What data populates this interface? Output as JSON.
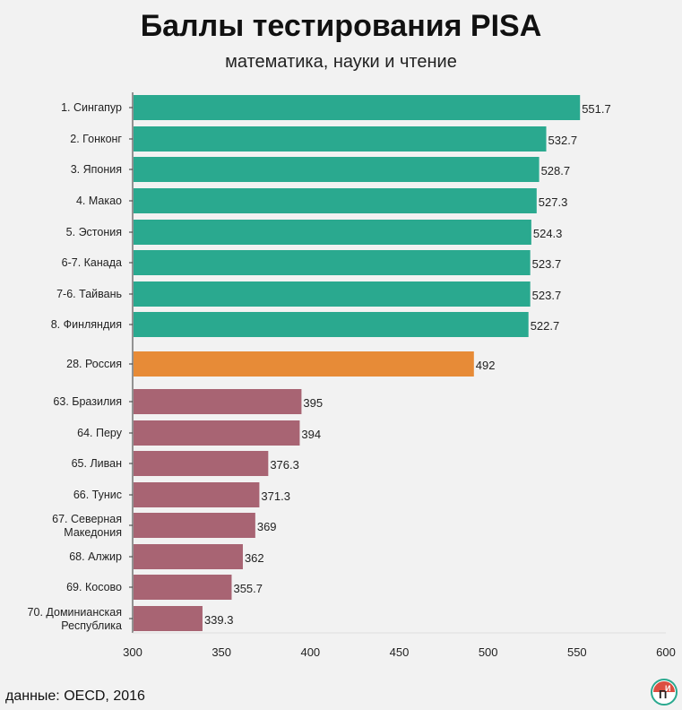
{
  "title": "Баллы тестирования PISA",
  "subtitle": "математика, науки и чтение",
  "source": "данные: OECD, 2016",
  "logo": {
    "text_p": "П",
    "text_i": "И",
    "colors": {
      "red": "#d83b2b",
      "green": "#2aa98f",
      "dark": "#222222"
    }
  },
  "chart_data": {
    "type": "bar",
    "orientation": "horizontal",
    "categories": [
      "1. Сингапур",
      "2. Гонконг",
      "3. Япония",
      "4. Макао",
      "5. Эстония",
      "6-7. Канада",
      "7-6. Тайвань",
      "8. Финляндия",
      "28. Россия",
      "63. Бразилия",
      "64. Перу",
      "65. Ливан",
      "66. Тунис",
      "67. Северная Македония",
      "68. Алжир",
      "69. Косово",
      "70. Доминианская Республика"
    ],
    "values": [
      551.7,
      532.7,
      528.7,
      527.3,
      524.3,
      523.7,
      523.7,
      522.7,
      492,
      395,
      394,
      376.3,
      371.3,
      369,
      362,
      355.7,
      339.3
    ],
    "value_labels": [
      "551.7",
      "532.7",
      "528.7",
      "527.3",
      "524.3",
      "523.7",
      "523.7",
      "522.7",
      "492",
      "395",
      "394",
      "376.3",
      "371.3",
      "369",
      "362",
      "355.7",
      "339.3"
    ],
    "groups": [
      "top",
      "top",
      "top",
      "top",
      "top",
      "top",
      "top",
      "top",
      "russia",
      "bottom",
      "bottom",
      "bottom",
      "bottom",
      "bottom",
      "bottom",
      "bottom",
      "bottom"
    ],
    "colors": {
      "top": "#2aa98f",
      "russia": "#e78b37",
      "bottom": "#a86473"
    },
    "xlim": [
      300,
      600
    ],
    "xticks": [
      "300",
      "350",
      "400",
      "450",
      "500",
      "550",
      "600"
    ],
    "grid": false,
    "legend": false
  }
}
